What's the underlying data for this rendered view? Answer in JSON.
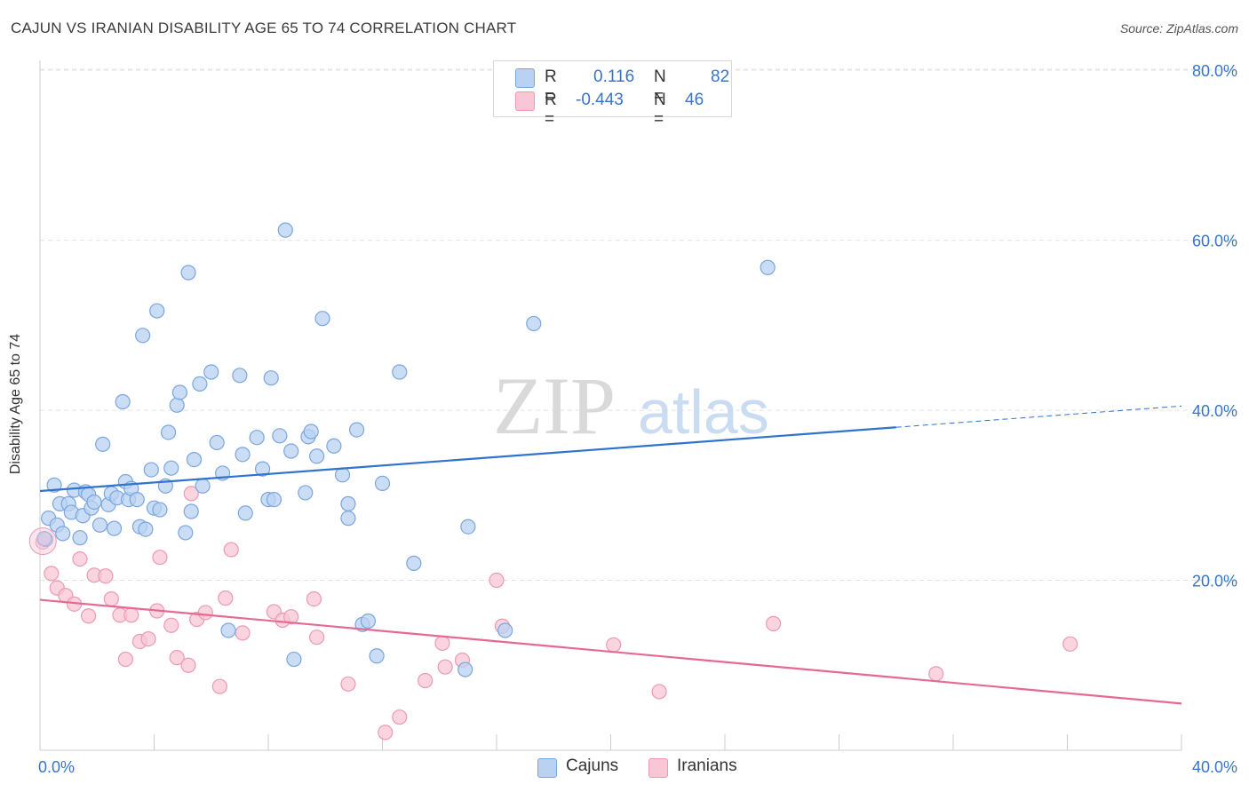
{
  "header": {
    "title": "CAJUN VS IRANIAN DISABILITY AGE 65 TO 74 CORRELATION CHART",
    "source": "Source: ZipAtlas.com"
  },
  "legend": {
    "rows": [
      {
        "r_label": "R =",
        "r_value": "0.116",
        "n_label": "N =",
        "n_value": "82"
      },
      {
        "r_label": "R =",
        "r_value": "-0.443",
        "n_label": "N =",
        "n_value": "46"
      }
    ]
  },
  "bottom_legend": {
    "cajuns": "Cajuns",
    "iranians": "Iranians"
  },
  "watermark": {
    "zip": "ZIP",
    "atlas": "atlas"
  },
  "colors": {
    "cajun_fill": "#b9d2f2",
    "cajun_stroke": "#7aa6de",
    "cajun_line": "#2f73cc",
    "iranian_fill": "#f8c6d4",
    "iranian_stroke": "#ec9ab3",
    "iranian_line": "#e56a93",
    "axis_label": "#3a74c8",
    "grid": "#e3e3e3"
  },
  "chart_data": {
    "type": "scatter",
    "title": "CAJUN VS IRANIAN DISABILITY AGE 65 TO 74 CORRELATION CHART",
    "xlabel": "",
    "ylabel": "Disability Age 65 to 74",
    "xlim": [
      0,
      40
    ],
    "ylim": [
      0,
      82
    ],
    "x_tick_labels": [
      "0.0%",
      "40.0%"
    ],
    "y_ticks": [
      20,
      40,
      60,
      80
    ],
    "y_tick_labels": [
      "20.0%",
      "40.0%",
      "60.0%",
      "80.0%"
    ],
    "grid": "horizontal dashed",
    "legend_position": "top-center",
    "series": [
      {
        "name": "Cajuns",
        "r": 0.116,
        "n": 82,
        "trend": {
          "x0": 0,
          "y0": 30.5,
          "x1": 30,
          "y1": 38.0,
          "dashed_to_x": 40,
          "dashed_to_y": 40.5
        },
        "points": [
          [
            0.2,
            24.8
          ],
          [
            0.3,
            27.3
          ],
          [
            0.5,
            31.2
          ],
          [
            0.6,
            26.5
          ],
          [
            0.7,
            29
          ],
          [
            0.8,
            25.5
          ],
          [
            1.0,
            29
          ],
          [
            1.1,
            28
          ],
          [
            1.2,
            30.6
          ],
          [
            1.4,
            25
          ],
          [
            1.5,
            27.6
          ],
          [
            1.6,
            30.4
          ],
          [
            1.7,
            30.1
          ],
          [
            1.8,
            28.5
          ],
          [
            1.9,
            29.2
          ],
          [
            2.1,
            26.5
          ],
          [
            2.2,
            36
          ],
          [
            2.4,
            28.9
          ],
          [
            2.5,
            30.2
          ],
          [
            2.6,
            26.1
          ],
          [
            2.7,
            29.7
          ],
          [
            2.9,
            41
          ],
          [
            3.0,
            31.6
          ],
          [
            3.1,
            29.5
          ],
          [
            3.2,
            30.8
          ],
          [
            3.4,
            29.5
          ],
          [
            3.5,
            26.3
          ],
          [
            3.6,
            48.8
          ],
          [
            3.7,
            26
          ],
          [
            3.9,
            33
          ],
          [
            4.0,
            28.5
          ],
          [
            4.1,
            51.7
          ],
          [
            4.2,
            28.3
          ],
          [
            4.4,
            31.1
          ],
          [
            4.5,
            37.4
          ],
          [
            4.6,
            33.2
          ],
          [
            4.8,
            40.6
          ],
          [
            4.9,
            42.1
          ],
          [
            5.1,
            25.6
          ],
          [
            5.2,
            56.2
          ],
          [
            5.3,
            28.1
          ],
          [
            5.4,
            34.2
          ],
          [
            5.6,
            43.1
          ],
          [
            5.7,
            31.1
          ],
          [
            6.0,
            44.5
          ],
          [
            6.2,
            36.2
          ],
          [
            6.4,
            32.6
          ],
          [
            6.6,
            14.1
          ],
          [
            7.0,
            44.1
          ],
          [
            7.1,
            34.8
          ],
          [
            7.2,
            27.9
          ],
          [
            7.6,
            36.8
          ],
          [
            7.8,
            33.1
          ],
          [
            8.0,
            29.5
          ],
          [
            8.1,
            43.8
          ],
          [
            8.2,
            29.5
          ],
          [
            8.4,
            37
          ],
          [
            8.6,
            61.2
          ],
          [
            8.8,
            35.2
          ],
          [
            8.9,
            10.7
          ],
          [
            9.3,
            30.3
          ],
          [
            9.4,
            36.9
          ],
          [
            9.5,
            37.5
          ],
          [
            9.7,
            34.6
          ],
          [
            9.9,
            50.8
          ],
          [
            10.3,
            35.8
          ],
          [
            10.6,
            32.4
          ],
          [
            10.8,
            29
          ],
          [
            10.8,
            27.3
          ],
          [
            11.1,
            37.7
          ],
          [
            11.3,
            14.8
          ],
          [
            11.5,
            15.2
          ],
          [
            11.8,
            11.1
          ],
          [
            12.0,
            31.4
          ],
          [
            12.6,
            44.5
          ],
          [
            13.1,
            22.0
          ],
          [
            14.9,
            9.5
          ],
          [
            15.0,
            26.3
          ],
          [
            16.3,
            14.1
          ],
          [
            17.3,
            50.2
          ],
          [
            25.5,
            56.8
          ],
          [
            0.15,
            24.9
          ]
        ]
      },
      {
        "name": "Iranians",
        "r": -0.443,
        "n": 46,
        "trend": {
          "x0": 0,
          "y0": 17.7,
          "x1": 40,
          "y1": 5.5
        },
        "points": [
          [
            0.1,
            24.5
          ],
          [
            0.4,
            20.8
          ],
          [
            0.6,
            19.1
          ],
          [
            0.9,
            18.2
          ],
          [
            1.2,
            17.2
          ],
          [
            1.4,
            22.5
          ],
          [
            1.7,
            15.8
          ],
          [
            1.9,
            20.6
          ],
          [
            2.3,
            20.5
          ],
          [
            2.5,
            17.8
          ],
          [
            2.8,
            15.9
          ],
          [
            3.0,
            10.7
          ],
          [
            3.2,
            15.9
          ],
          [
            3.5,
            12.8
          ],
          [
            3.8,
            13.1
          ],
          [
            4.1,
            16.4
          ],
          [
            4.2,
            22.7
          ],
          [
            4.6,
            14.7
          ],
          [
            4.8,
            10.9
          ],
          [
            5.2,
            10
          ],
          [
            5.3,
            30.2
          ],
          [
            5.5,
            15.4
          ],
          [
            5.8,
            16.2
          ],
          [
            6.3,
            7.5
          ],
          [
            6.7,
            23.6
          ],
          [
            6.5,
            17.9
          ],
          [
            7.1,
            13.8
          ],
          [
            8.2,
            16.3
          ],
          [
            8.5,
            15.3
          ],
          [
            8.8,
            15.7
          ],
          [
            9.6,
            17.8
          ],
          [
            9.7,
            13.3
          ],
          [
            10.8,
            7.8
          ],
          [
            12.1,
            2.1
          ],
          [
            12.6,
            3.9
          ],
          [
            13.5,
            8.2
          ],
          [
            14.1,
            12.6
          ],
          [
            14.2,
            9.8
          ],
          [
            14.8,
            10.6
          ],
          [
            16.0,
            20
          ],
          [
            16.2,
            14.6
          ],
          [
            20.1,
            12.4
          ],
          [
            21.7,
            6.9
          ],
          [
            25.7,
            14.9
          ],
          [
            31.4,
            9
          ],
          [
            36.1,
            12.5
          ]
        ]
      }
    ]
  }
}
